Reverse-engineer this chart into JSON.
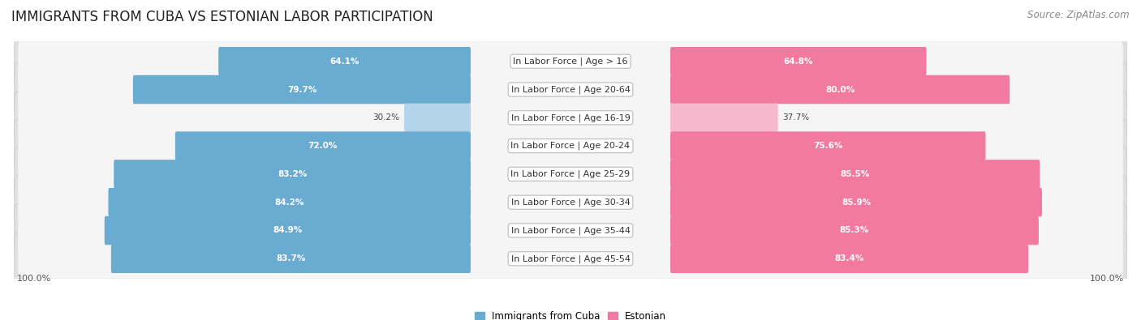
{
  "title": "IMMIGRANTS FROM CUBA VS ESTONIAN LABOR PARTICIPATION",
  "source": "Source: ZipAtlas.com",
  "categories": [
    "In Labor Force | Age > 16",
    "In Labor Force | Age 20-64",
    "In Labor Force | Age 16-19",
    "In Labor Force | Age 20-24",
    "In Labor Force | Age 25-29",
    "In Labor Force | Age 30-34",
    "In Labor Force | Age 35-44",
    "In Labor Force | Age 45-54"
  ],
  "cuba_values": [
    64.1,
    79.7,
    30.2,
    72.0,
    83.2,
    84.2,
    84.9,
    83.7
  ],
  "estonian_values": [
    64.8,
    80.0,
    37.7,
    75.6,
    85.5,
    85.9,
    85.3,
    83.4
  ],
  "cuba_color": "#6aabd2",
  "cuba_color_light": "#b3d4ea",
  "estonian_color": "#f2799f",
  "estonian_color_light": "#f5b8cc",
  "row_bg_color": "#e8e8e8",
  "row_inner_bg": "#f8f8f8",
  "max_value": 100.0,
  "legend_cuba": "Immigrants from Cuba",
  "legend_estonian": "Estonian",
  "title_fontsize": 12,
  "source_fontsize": 8.5,
  "label_fontsize": 8,
  "value_fontsize": 7.5,
  "axis_label_fontsize": 8,
  "background_color": "#ffffff"
}
